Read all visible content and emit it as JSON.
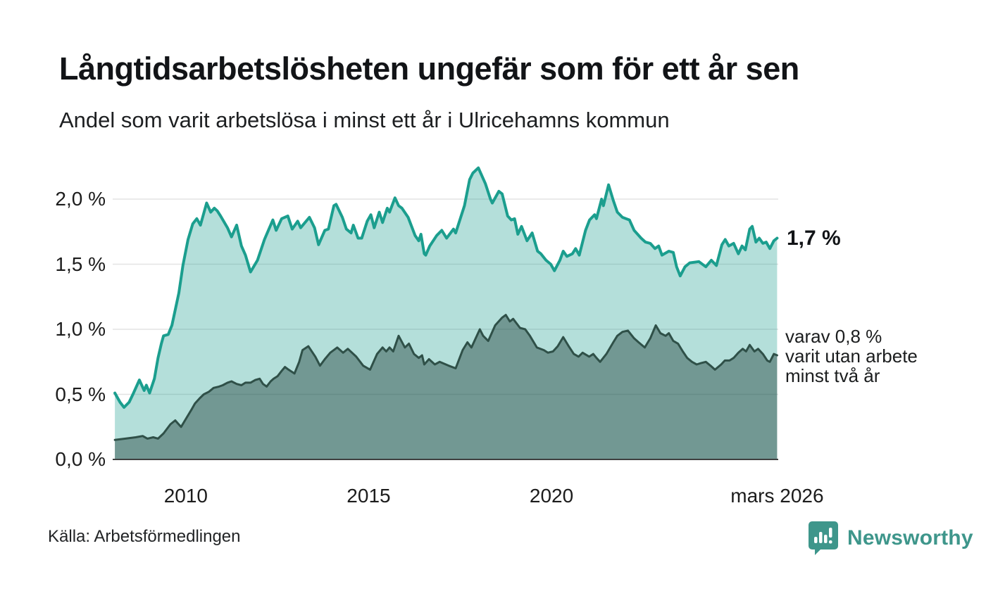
{
  "chart_data": {
    "type": "area",
    "title": "Långtidsarbetslösheten ungefär som för ett år sen",
    "subtitle": "Andel som varit arbetslösa i minst ett år i Ulricehamns kommun",
    "source": "Källa: Arbetsförmedlingen",
    "xlim": [
      2008.0,
      2026.2
    ],
    "ylim": [
      0,
      2.4
    ],
    "grid": true,
    "colors": {
      "grid": "#e3e3e3",
      "axis": "#3f3f3f",
      "series1_line": "#1b9e8e",
      "series1_fill": "rgba(27,158,142,0.33)",
      "series2_line": "#2f5048",
      "series2_fill": "rgba(23,56,49,0.42)"
    },
    "y_ticks": [
      {
        "value": 0.0,
        "label": "0,0 %"
      },
      {
        "value": 0.5,
        "label": "0,5 %"
      },
      {
        "value": 1.0,
        "label": "1,0 %"
      },
      {
        "value": 1.5,
        "label": "1,5 %"
      },
      {
        "value": 2.0,
        "label": "2,0 %"
      }
    ],
    "x_ticks": [
      {
        "value": 2010,
        "label": "2010"
      },
      {
        "value": 2015,
        "label": "2015"
      },
      {
        "value": 2020,
        "label": "2020"
      },
      {
        "value": 2026.17,
        "label": "mars 2026"
      }
    ],
    "annotations": {
      "primary_label": "1,7 %",
      "primary_value": 1.7,
      "secondary_lines": [
        "varav 0,8 %",
        "varit utan arbete",
        "minst två år"
      ],
      "secondary_value": 0.8
    },
    "series": [
      {
        "name": "minst ett år",
        "points": [
          [
            2008.06,
            0.51
          ],
          [
            2008.2,
            0.44
          ],
          [
            2008.31,
            0.4
          ],
          [
            2008.45,
            0.44
          ],
          [
            2008.57,
            0.51
          ],
          [
            2008.73,
            0.61
          ],
          [
            2008.86,
            0.53
          ],
          [
            2008.92,
            0.57
          ],
          [
            2009.01,
            0.51
          ],
          [
            2009.14,
            0.62
          ],
          [
            2009.24,
            0.78
          ],
          [
            2009.33,
            0.89
          ],
          [
            2009.39,
            0.95
          ],
          [
            2009.52,
            0.96
          ],
          [
            2009.62,
            1.03
          ],
          [
            2009.81,
            1.28
          ],
          [
            2009.92,
            1.49
          ],
          [
            2010.06,
            1.69
          ],
          [
            2010.19,
            1.81
          ],
          [
            2010.3,
            1.85
          ],
          [
            2010.4,
            1.8
          ],
          [
            2010.57,
            1.97
          ],
          [
            2010.68,
            1.9
          ],
          [
            2010.78,
            1.93
          ],
          [
            2010.86,
            1.91
          ],
          [
            2010.95,
            1.87
          ],
          [
            2011.14,
            1.78
          ],
          [
            2011.25,
            1.71
          ],
          [
            2011.39,
            1.8
          ],
          [
            2011.52,
            1.64
          ],
          [
            2011.63,
            1.57
          ],
          [
            2011.77,
            1.44
          ],
          [
            2011.96,
            1.53
          ],
          [
            2012.15,
            1.69
          ],
          [
            2012.38,
            1.84
          ],
          [
            2012.47,
            1.76
          ],
          [
            2012.62,
            1.85
          ],
          [
            2012.79,
            1.87
          ],
          [
            2012.91,
            1.77
          ],
          [
            2013.06,
            1.83
          ],
          [
            2013.14,
            1.78
          ],
          [
            2013.38,
            1.86
          ],
          [
            2013.52,
            1.78
          ],
          [
            2013.63,
            1.65
          ],
          [
            2013.8,
            1.76
          ],
          [
            2013.9,
            1.77
          ],
          [
            2014.05,
            1.95
          ],
          [
            2014.11,
            1.96
          ],
          [
            2014.28,
            1.86
          ],
          [
            2014.39,
            1.77
          ],
          [
            2014.52,
            1.74
          ],
          [
            2014.58,
            1.8
          ],
          [
            2014.71,
            1.7
          ],
          [
            2014.81,
            1.7
          ],
          [
            2014.96,
            1.83
          ],
          [
            2015.06,
            1.88
          ],
          [
            2015.15,
            1.78
          ],
          [
            2015.29,
            1.9
          ],
          [
            2015.38,
            1.82
          ],
          [
            2015.51,
            1.93
          ],
          [
            2015.57,
            1.9
          ],
          [
            2015.72,
            2.01
          ],
          [
            2015.82,
            1.95
          ],
          [
            2015.91,
            1.93
          ],
          [
            2016.08,
            1.86
          ],
          [
            2016.27,
            1.72
          ],
          [
            2016.37,
            1.68
          ],
          [
            2016.43,
            1.73
          ],
          [
            2016.52,
            1.58
          ],
          [
            2016.56,
            1.57
          ],
          [
            2016.67,
            1.64
          ],
          [
            2016.86,
            1.72
          ],
          [
            2017.0,
            1.76
          ],
          [
            2017.13,
            1.7
          ],
          [
            2017.32,
            1.77
          ],
          [
            2017.38,
            1.74
          ],
          [
            2017.62,
            1.95
          ],
          [
            2017.76,
            2.15
          ],
          [
            2017.85,
            2.2
          ],
          [
            2018.0,
            2.24
          ],
          [
            2018.19,
            2.12
          ],
          [
            2018.33,
            2.0
          ],
          [
            2018.38,
            1.97
          ],
          [
            2018.56,
            2.06
          ],
          [
            2018.65,
            2.04
          ],
          [
            2018.8,
            1.87
          ],
          [
            2018.9,
            1.84
          ],
          [
            2018.99,
            1.85
          ],
          [
            2019.08,
            1.73
          ],
          [
            2019.18,
            1.79
          ],
          [
            2019.33,
            1.68
          ],
          [
            2019.47,
            1.74
          ],
          [
            2019.62,
            1.6
          ],
          [
            2019.71,
            1.58
          ],
          [
            2019.85,
            1.53
          ],
          [
            2019.98,
            1.5
          ],
          [
            2020.08,
            1.45
          ],
          [
            2020.23,
            1.53
          ],
          [
            2020.32,
            1.6
          ],
          [
            2020.42,
            1.56
          ],
          [
            2020.57,
            1.58
          ],
          [
            2020.66,
            1.62
          ],
          [
            2020.76,
            1.57
          ],
          [
            2020.93,
            1.76
          ],
          [
            2021.04,
            1.84
          ],
          [
            2021.18,
            1.88
          ],
          [
            2021.23,
            1.85
          ],
          [
            2021.37,
            2.0
          ],
          [
            2021.42,
            1.95
          ],
          [
            2021.56,
            2.11
          ],
          [
            2021.69,
            1.99
          ],
          [
            2021.8,
            1.9
          ],
          [
            2021.94,
            1.86
          ],
          [
            2022.13,
            1.84
          ],
          [
            2022.26,
            1.76
          ],
          [
            2022.45,
            1.7
          ],
          [
            2022.57,
            1.67
          ],
          [
            2022.7,
            1.66
          ],
          [
            2022.83,
            1.62
          ],
          [
            2022.93,
            1.64
          ],
          [
            2023.02,
            1.57
          ],
          [
            2023.21,
            1.6
          ],
          [
            2023.33,
            1.59
          ],
          [
            2023.42,
            1.48
          ],
          [
            2023.52,
            1.41
          ],
          [
            2023.65,
            1.48
          ],
          [
            2023.78,
            1.51
          ],
          [
            2024.03,
            1.52
          ],
          [
            2024.22,
            1.48
          ],
          [
            2024.37,
            1.53
          ],
          [
            2024.51,
            1.49
          ],
          [
            2024.66,
            1.65
          ],
          [
            2024.75,
            1.69
          ],
          [
            2024.85,
            1.64
          ],
          [
            2024.98,
            1.66
          ],
          [
            2025.11,
            1.58
          ],
          [
            2025.21,
            1.64
          ],
          [
            2025.3,
            1.61
          ],
          [
            2025.42,
            1.77
          ],
          [
            2025.49,
            1.79
          ],
          [
            2025.59,
            1.67
          ],
          [
            2025.68,
            1.7
          ],
          [
            2025.78,
            1.66
          ],
          [
            2025.87,
            1.67
          ],
          [
            2025.97,
            1.62
          ],
          [
            2026.08,
            1.68
          ],
          [
            2026.17,
            1.7
          ]
        ]
      },
      {
        "name": "minst två år",
        "points": [
          [
            2008.06,
            0.15
          ],
          [
            2008.35,
            0.16
          ],
          [
            2008.63,
            0.17
          ],
          [
            2008.82,
            0.18
          ],
          [
            2008.95,
            0.16
          ],
          [
            2009.11,
            0.17
          ],
          [
            2009.24,
            0.16
          ],
          [
            2009.39,
            0.2
          ],
          [
            2009.58,
            0.27
          ],
          [
            2009.71,
            0.3
          ],
          [
            2009.87,
            0.25
          ],
          [
            2010.0,
            0.31
          ],
          [
            2010.15,
            0.38
          ],
          [
            2010.25,
            0.43
          ],
          [
            2010.38,
            0.47
          ],
          [
            2010.49,
            0.5
          ],
          [
            2010.63,
            0.52
          ],
          [
            2010.76,
            0.55
          ],
          [
            2010.91,
            0.56
          ],
          [
            2011.01,
            0.57
          ],
          [
            2011.14,
            0.59
          ],
          [
            2011.25,
            0.6
          ],
          [
            2011.39,
            0.58
          ],
          [
            2011.52,
            0.57
          ],
          [
            2011.63,
            0.59
          ],
          [
            2011.77,
            0.59
          ],
          [
            2011.9,
            0.61
          ],
          [
            2012.02,
            0.62
          ],
          [
            2012.11,
            0.58
          ],
          [
            2012.21,
            0.56
          ],
          [
            2012.32,
            0.6
          ],
          [
            2012.4,
            0.62
          ],
          [
            2012.51,
            0.64
          ],
          [
            2012.62,
            0.68
          ],
          [
            2012.71,
            0.71
          ],
          [
            2012.81,
            0.69
          ],
          [
            2012.97,
            0.66
          ],
          [
            2013.1,
            0.75
          ],
          [
            2013.19,
            0.84
          ],
          [
            2013.35,
            0.87
          ],
          [
            2013.54,
            0.79
          ],
          [
            2013.67,
            0.72
          ],
          [
            2013.8,
            0.77
          ],
          [
            2013.95,
            0.82
          ],
          [
            2014.14,
            0.86
          ],
          [
            2014.3,
            0.82
          ],
          [
            2014.43,
            0.85
          ],
          [
            2014.66,
            0.79
          ],
          [
            2014.85,
            0.72
          ],
          [
            2015.04,
            0.69
          ],
          [
            2015.23,
            0.81
          ],
          [
            2015.38,
            0.86
          ],
          [
            2015.48,
            0.83
          ],
          [
            2015.57,
            0.86
          ],
          [
            2015.67,
            0.83
          ],
          [
            2015.82,
            0.95
          ],
          [
            2015.99,
            0.86
          ],
          [
            2016.1,
            0.89
          ],
          [
            2016.24,
            0.81
          ],
          [
            2016.37,
            0.78
          ],
          [
            2016.46,
            0.8
          ],
          [
            2016.52,
            0.73
          ],
          [
            2016.65,
            0.77
          ],
          [
            2016.81,
            0.73
          ],
          [
            2016.94,
            0.75
          ],
          [
            2017.19,
            0.72
          ],
          [
            2017.38,
            0.7
          ],
          [
            2017.57,
            0.84
          ],
          [
            2017.7,
            0.9
          ],
          [
            2017.81,
            0.86
          ],
          [
            2018.04,
            1.0
          ],
          [
            2018.13,
            0.95
          ],
          [
            2018.27,
            0.91
          ],
          [
            2018.46,
            1.03
          ],
          [
            2018.65,
            1.09
          ],
          [
            2018.75,
            1.11
          ],
          [
            2018.86,
            1.06
          ],
          [
            2018.95,
            1.08
          ],
          [
            2019.14,
            1.01
          ],
          [
            2019.28,
            1.0
          ],
          [
            2019.41,
            0.95
          ],
          [
            2019.6,
            0.86
          ],
          [
            2019.79,
            0.84
          ],
          [
            2019.9,
            0.82
          ],
          [
            2020.04,
            0.83
          ],
          [
            2020.17,
            0.87
          ],
          [
            2020.32,
            0.94
          ],
          [
            2020.47,
            0.87
          ],
          [
            2020.61,
            0.81
          ],
          [
            2020.74,
            0.79
          ],
          [
            2020.85,
            0.82
          ],
          [
            2021.03,
            0.79
          ],
          [
            2021.14,
            0.81
          ],
          [
            2021.23,
            0.78
          ],
          [
            2021.33,
            0.75
          ],
          [
            2021.5,
            0.81
          ],
          [
            2021.69,
            0.9
          ],
          [
            2021.8,
            0.95
          ],
          [
            2021.94,
            0.98
          ],
          [
            2022.09,
            0.99
          ],
          [
            2022.26,
            0.93
          ],
          [
            2022.38,
            0.9
          ],
          [
            2022.55,
            0.86
          ],
          [
            2022.7,
            0.93
          ],
          [
            2022.85,
            1.03
          ],
          [
            2022.98,
            0.97
          ],
          [
            2023.12,
            0.95
          ],
          [
            2023.21,
            0.97
          ],
          [
            2023.33,
            0.91
          ],
          [
            2023.46,
            0.89
          ],
          [
            2023.59,
            0.83
          ],
          [
            2023.71,
            0.78
          ],
          [
            2023.84,
            0.75
          ],
          [
            2023.97,
            0.73
          ],
          [
            2024.09,
            0.74
          ],
          [
            2024.22,
            0.75
          ],
          [
            2024.35,
            0.72
          ],
          [
            2024.47,
            0.69
          ],
          [
            2024.64,
            0.73
          ],
          [
            2024.74,
            0.76
          ],
          [
            2024.87,
            0.76
          ],
          [
            2024.98,
            0.78
          ],
          [
            2025.11,
            0.82
          ],
          [
            2025.23,
            0.85
          ],
          [
            2025.32,
            0.83
          ],
          [
            2025.42,
            0.88
          ],
          [
            2025.55,
            0.83
          ],
          [
            2025.65,
            0.85
          ],
          [
            2025.78,
            0.81
          ],
          [
            2025.9,
            0.76
          ],
          [
            2025.97,
            0.75
          ],
          [
            2026.08,
            0.81
          ],
          [
            2026.17,
            0.8
          ]
        ]
      }
    ]
  },
  "branding": {
    "logo_text": "Newsworthy",
    "color": "#3e968b"
  }
}
